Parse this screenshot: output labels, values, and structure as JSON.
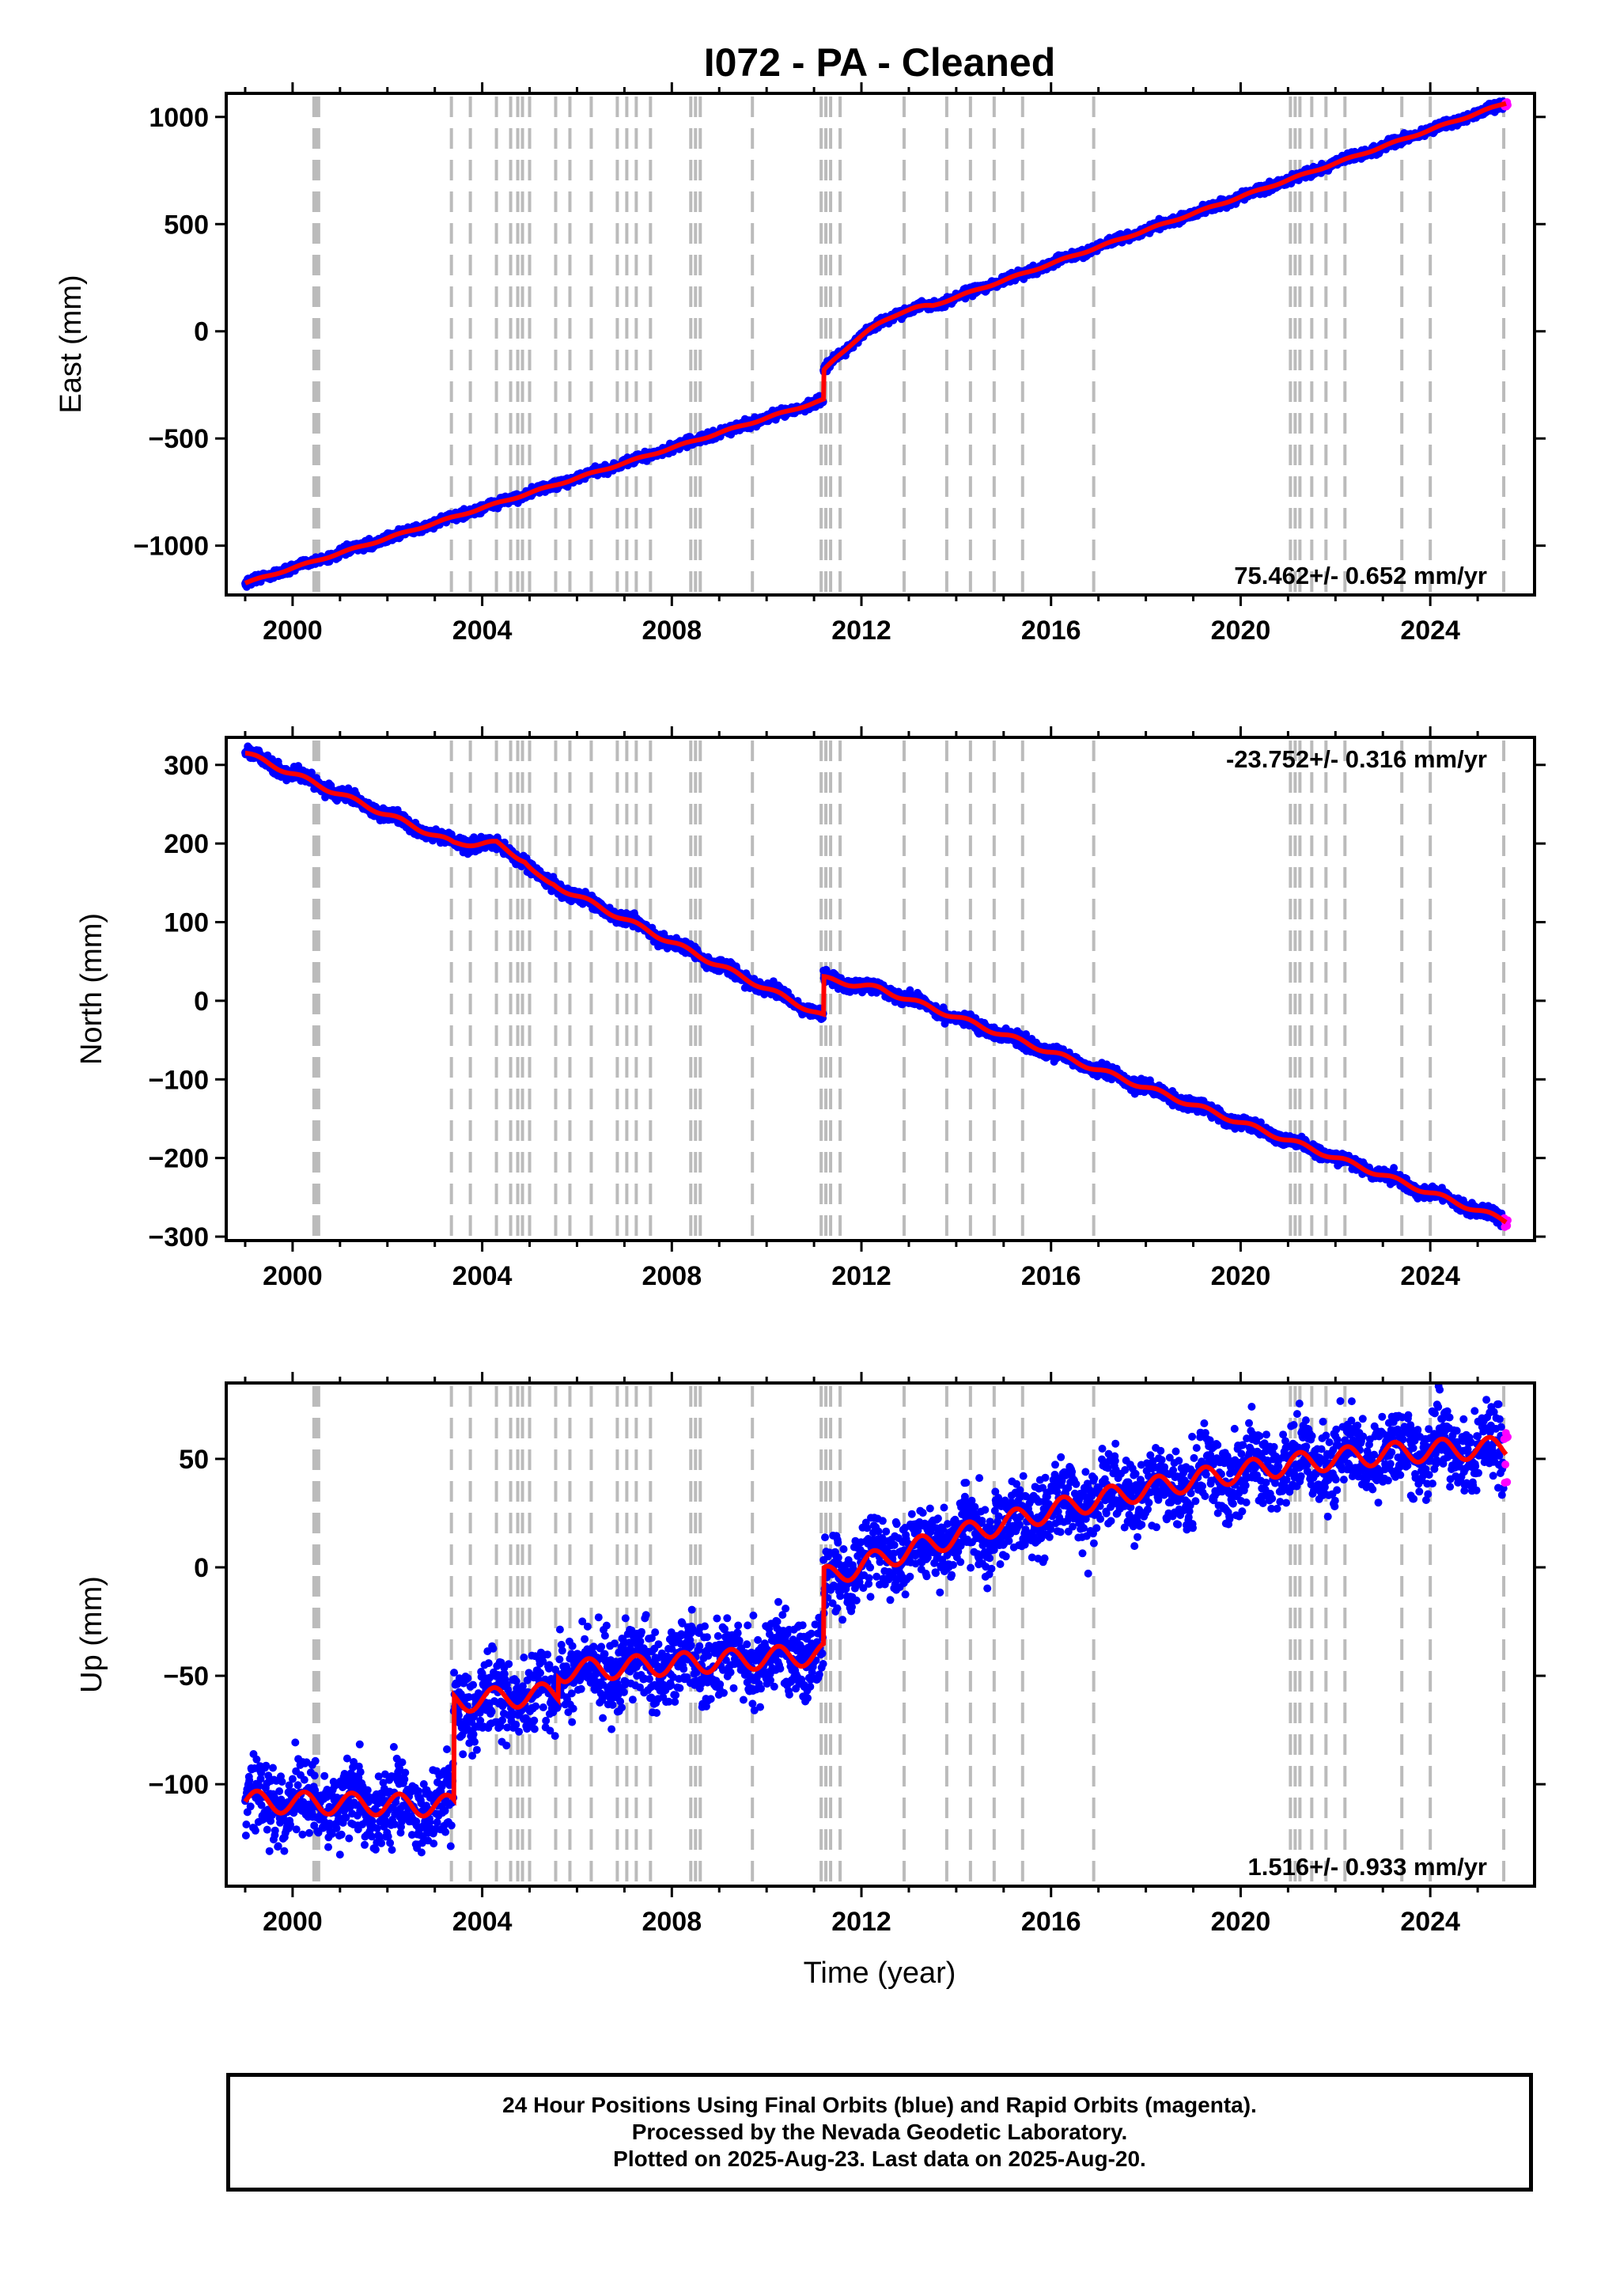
{
  "chart_data": {
    "type": "scatter",
    "title": "I072  - PA - Cleaned",
    "xlabel": "Time (year)",
    "xlim": [
      1998.6,
      2026.2
    ],
    "xticks": [
      2000,
      2004,
      2008,
      2012,
      2016,
      2020,
      2024
    ],
    "xtick_labels": [
      "2000",
      "2004",
      "2008",
      "2012",
      "2016",
      "2020",
      "2024"
    ],
    "colors": {
      "final": "#0000ff",
      "rapid": "#ff00ff",
      "model": "#ff0000",
      "event_lines": "#bbbbbb"
    },
    "legend": [
      "Final Orbits (blue)",
      "Rapid Orbits (magenta)"
    ],
    "event_lines": [
      2000.45,
      2000.5,
      2000.55,
      2003.35,
      2003.75,
      2004.3,
      2004.6,
      2004.75,
      2004.85,
      2005.0,
      2005.55,
      2005.85,
      2006.3,
      2006.85,
      2007.05,
      2007.25,
      2007.55,
      2008.4,
      2008.5,
      2008.6,
      2009.7,
      2011.15,
      2011.25,
      2011.35,
      2011.55,
      2012.9,
      2013.8,
      2014.3,
      2014.8,
      2015.4,
      2016.9,
      2021.05,
      2021.15,
      2021.25,
      2021.5,
      2021.8,
      2022.2,
      2023.4,
      2024.0,
      2025.55
    ],
    "panels": [
      {
        "name": "east",
        "ylabel": "East (mm)",
        "ylim": [
          -1230,
          1110
        ],
        "yticks": [
          -1000,
          -500,
          0,
          500,
          1000
        ],
        "ytick_labels": [
          "−1000",
          "−500",
          "0",
          "500",
          "1000"
        ],
        "rate": "75.462+/- 0.652 mm/yr",
        "rate_corner": "bottom-right",
        "model": {
          "breaks": [
            {
              "from": 1999.0,
              "to": 2011.2,
              "y0": -1175,
              "y1": -320,
              "curve": "linear"
            },
            {
              "from": 2011.2,
              "to": 2013.5,
              "y0": -185,
              "y1": 120,
              "curve": "decay"
            },
            {
              "from": 2013.5,
              "to": 2025.6,
              "y0": 120,
              "y1": 1065,
              "curve": "linear"
            }
          ],
          "seasonal_amp": 4,
          "scatter": 10
        }
      },
      {
        "name": "north",
        "ylabel": "North (mm)",
        "ylim": [
          -305,
          335
        ],
        "yticks": [
          -300,
          -200,
          -100,
          0,
          100,
          200,
          300
        ],
        "ytick_labels": [
          "−300",
          "−200",
          "−100",
          "0",
          "100",
          "200",
          "300"
        ],
        "rate": "-23.752+/- 0.316 mm/yr",
        "rate_corner": "top-right",
        "model": {
          "breaks": [
            {
              "from": 1999.0,
              "to": 2003.4,
              "y0": 315,
              "y1": 200,
              "curve": "linear"
            },
            {
              "from": 2003.4,
              "to": 2004.3,
              "y0": 200,
              "y1": 200,
              "curve": "linear"
            },
            {
              "from": 2004.3,
              "to": 2004.9,
              "y0": 200,
              "y1": 178,
              "curve": "linear"
            },
            {
              "from": 2004.9,
              "to": 2005.5,
              "y0": 178,
              "y1": 148,
              "curve": "decay"
            },
            {
              "from": 2005.5,
              "to": 2011.2,
              "y0": 148,
              "y1": -20,
              "curve": "linear"
            },
            {
              "from": 2011.2,
              "to": 2012.4,
              "y0": 28,
              "y1": 15,
              "curve": "linear"
            },
            {
              "from": 2012.4,
              "to": 2025.6,
              "y0": 15,
              "y1": -280,
              "curve": "linear"
            }
          ],
          "seasonal_amp": 3,
          "scatter": 4
        }
      },
      {
        "name": "up",
        "ylabel": "Up (mm)",
        "ylim": [
          -147,
          85
        ],
        "yticks": [
          -100,
          -50,
          0,
          50
        ],
        "ytick_labels": [
          "−100",
          "−50",
          "0",
          "50"
        ],
        "rate": "1.516+/- 0.933 mm/yr",
        "rate_corner": "bottom-right",
        "model": {
          "breaks": [
            {
              "from": 1999.0,
              "to": 2003.4,
              "y0": -108,
              "y1": -110,
              "curve": "linear"
            },
            {
              "from": 2003.4,
              "to": 2005.6,
              "y0": -62,
              "y1": -58,
              "curve": "linear"
            },
            {
              "from": 2005.6,
              "to": 2011.2,
              "y0": -48,
              "y1": -40,
              "curve": "linear"
            },
            {
              "from": 2011.2,
              "to": 2025.6,
              "y0": -5,
              "y1": 55,
              "curve": "decay"
            }
          ],
          "seasonal_amp": 5,
          "scatter": 9
        }
      }
    ]
  },
  "footer": {
    "line1": "24 Hour Positions Using Final Orbits (blue) and Rapid Orbits (magenta).",
    "line2": "Processed by the Nevada Geodetic Laboratory.",
    "line3": "Plotted on 2025-Aug-23. Last data on 2025-Aug-20."
  }
}
